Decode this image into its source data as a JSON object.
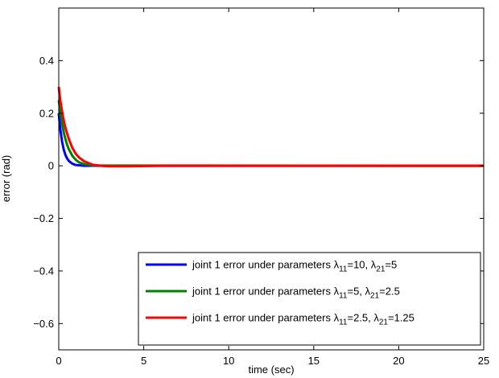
{
  "chart_data": {
    "type": "line",
    "title": "",
    "xlabel": "time (sec)",
    "ylabel": "error (rad)",
    "xlim": [
      0,
      25
    ],
    "ylim": [
      -0.7,
      0.6
    ],
    "xticks": [
      0,
      5,
      10,
      15,
      20,
      25
    ],
    "yticks": [
      -0.6,
      -0.4,
      -0.2,
      0,
      0.2,
      0.4
    ],
    "ytick_labels": [
      "−0.6",
      "−0.4",
      "−0.2",
      "0",
      "0.2",
      "0.4"
    ],
    "grid": false,
    "legend_position": "bottom-right",
    "series": [
      {
        "name": "joint 1 error under parameters λ11=10, λ21=5",
        "legend": {
          "prefix": "joint 1 error under parameters λ",
          "sub1": "11",
          "mid": "=10, λ",
          "sub2": "21",
          "suffix": "=5"
        },
        "color": "#0000ff",
        "x": [
          0,
          0.05,
          0.1,
          0.2,
          0.3,
          0.4,
          0.5,
          0.6,
          0.8,
          1.0,
          1.5,
          2.0,
          25
        ],
        "y": [
          0.2,
          0.165,
          0.135,
          0.09,
          0.06,
          0.04,
          0.027,
          0.018,
          0.008,
          0.003,
          0.0,
          0.0,
          0.0
        ]
      },
      {
        "name": "joint 1 error under parameters λ11=5, λ21=2.5",
        "legend": {
          "prefix": "joint 1 error under parameters λ",
          "sub1": "11",
          "mid": "=5, λ",
          "sub2": "21",
          "suffix": "=2.5"
        },
        "color": "#008000",
        "x": [
          0,
          0.05,
          0.1,
          0.2,
          0.3,
          0.4,
          0.5,
          0.6,
          0.8,
          1.0,
          1.2,
          1.5,
          2.0,
          25
        ],
        "y": [
          0.25,
          0.225,
          0.2,
          0.16,
          0.125,
          0.1,
          0.078,
          0.062,
          0.038,
          0.023,
          0.013,
          0.006,
          0.001,
          0.0
        ]
      },
      {
        "name": "joint 1 error under parameters λ11=2.5, λ21=1.25",
        "legend": {
          "prefix": "joint 1 error under parameters λ",
          "sub1": "11",
          "mid": "=2.5, λ",
          "sub2": "21",
          "suffix": "=1.25"
        },
        "color": "#ff0000",
        "x": [
          0,
          0.05,
          0.1,
          0.2,
          0.3,
          0.4,
          0.6,
          0.8,
          1.0,
          1.2,
          1.5,
          2.0,
          2.5,
          3.0,
          4.0,
          6.0,
          10.0,
          15.0,
          20.0,
          25.0
        ],
        "y": [
          0.3,
          0.27,
          0.245,
          0.205,
          0.17,
          0.142,
          0.1,
          0.068,
          0.046,
          0.031,
          0.017,
          0.004,
          0.0,
          -0.002,
          -0.002,
          0.0,
          0.0,
          0.0,
          0.0,
          0.0
        ]
      }
    ]
  }
}
